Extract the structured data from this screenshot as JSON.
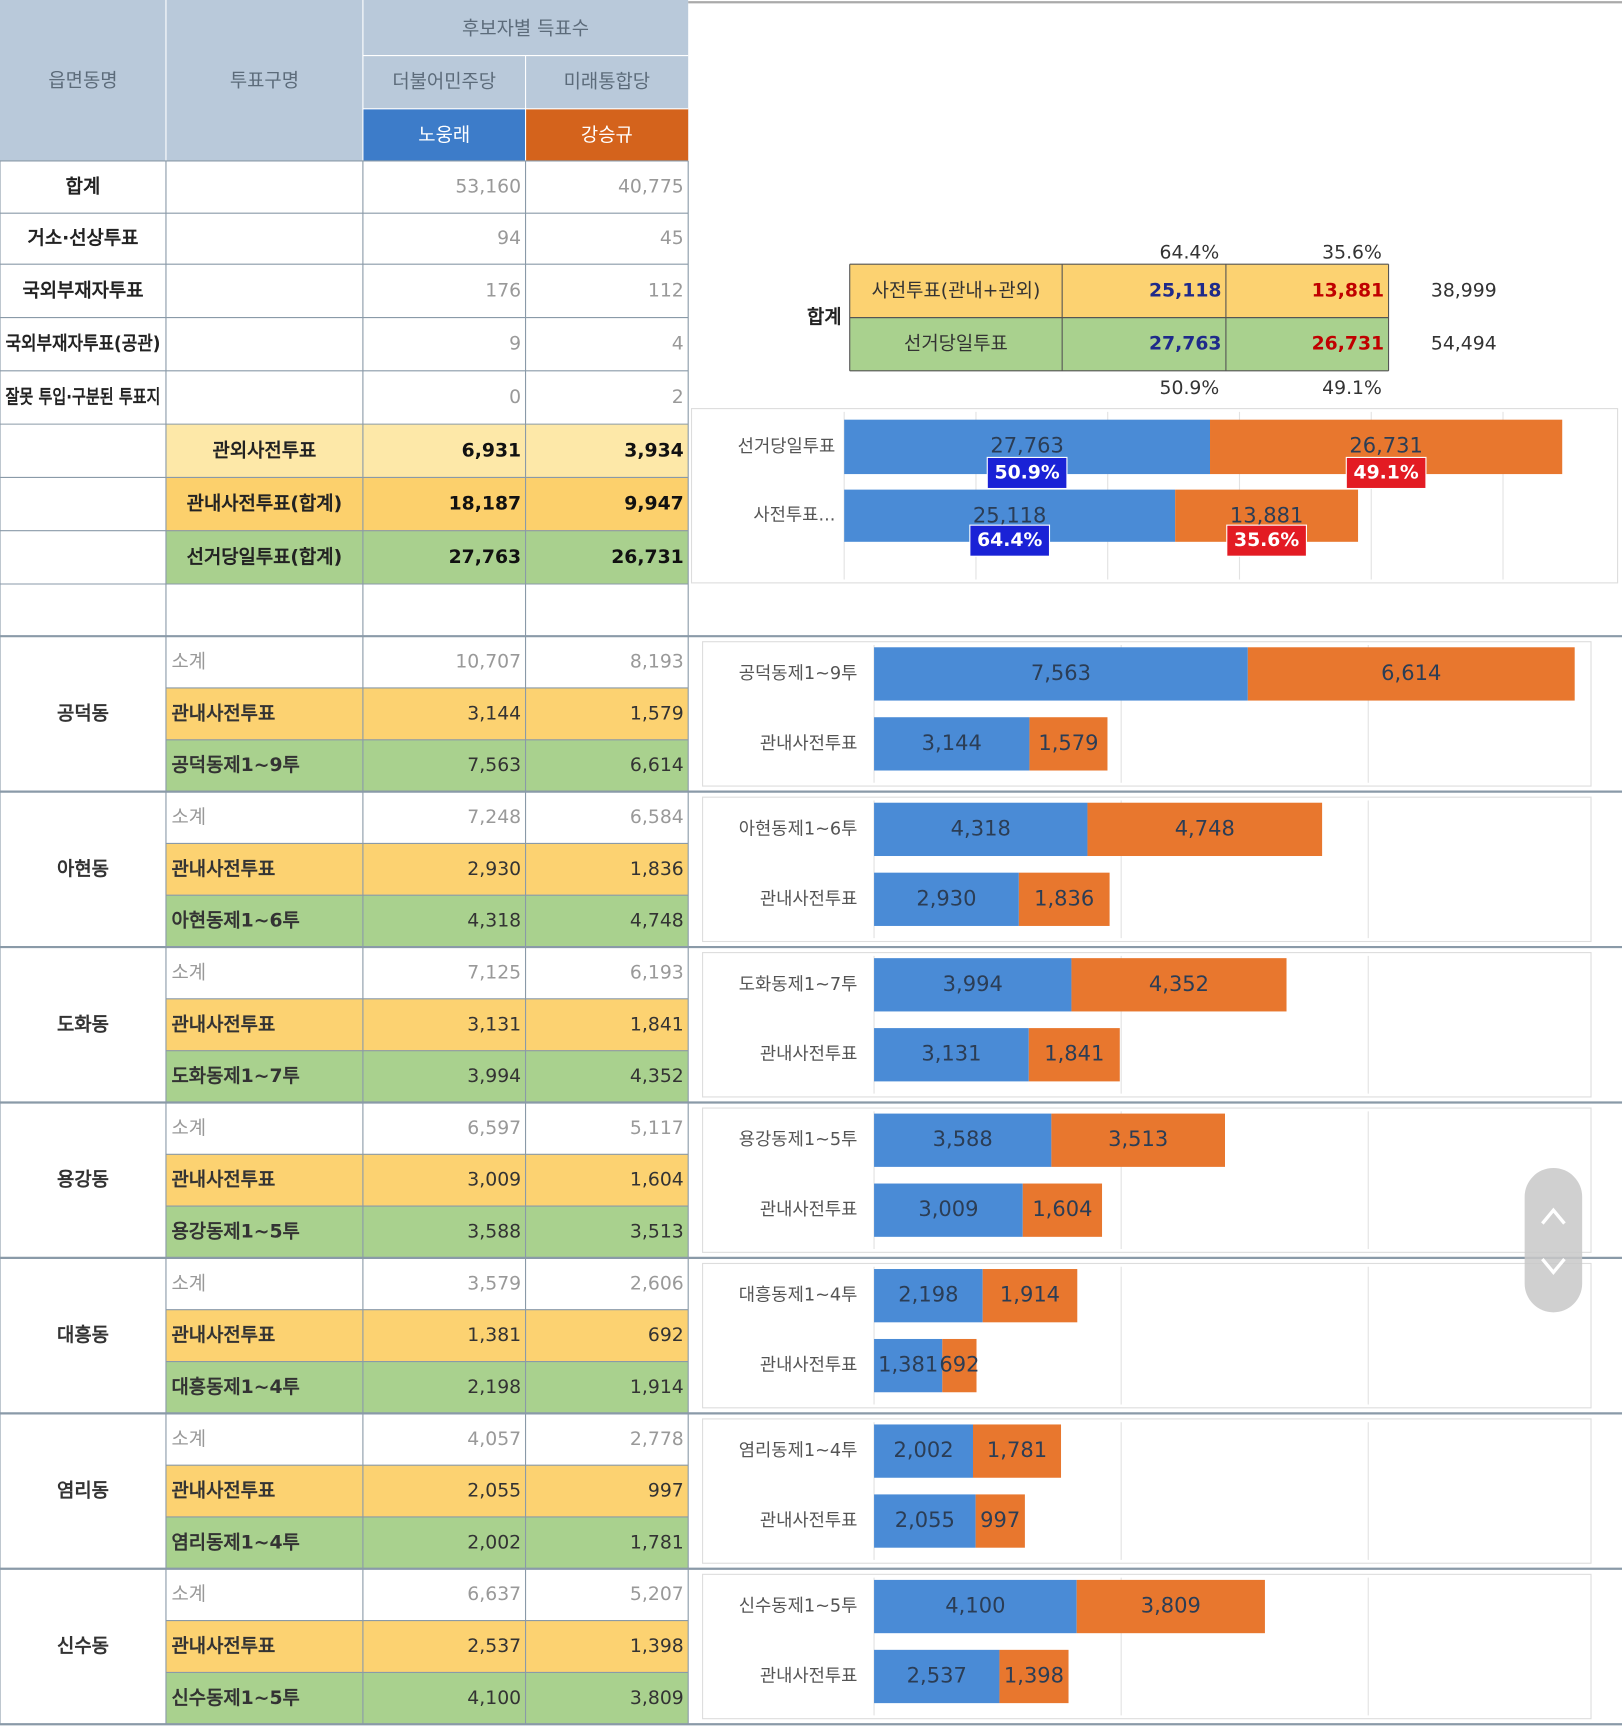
{
  "header": {
    "district": "읍면동명",
    "precinct": "투표구명",
    "group": "후보자별 득표수",
    "parties": [
      "더불어민주당",
      "미래통합당"
    ],
    "candidates": [
      "노웅래",
      "강승규"
    ]
  },
  "top_rows": [
    {
      "district": "합계",
      "votes": [
        "53,160",
        "40,775"
      ]
    },
    {
      "district": "거소·선상투표",
      "votes": [
        "94",
        "45"
      ]
    },
    {
      "district": "국외부재자투표",
      "votes": [
        "176",
        "112"
      ]
    },
    {
      "district": "국외부재자투표(공관)",
      "votes": [
        "9",
        "4"
      ]
    },
    {
      "district": "잘못 투입·구분된 투표지",
      "votes": [
        "0",
        "2"
      ]
    },
    {
      "precinct": "관외사전투표",
      "votes": [
        "6,931",
        "3,934"
      ]
    },
    {
      "precinct": "관내사전투표(합계)",
      "votes": [
        "18,187",
        "9,947"
      ]
    },
    {
      "precinct": "선거당일투표(합계)",
      "votes": [
        "27,763",
        "26,731"
      ]
    }
  ],
  "districts": [
    {
      "name": "공덕동",
      "rows": [
        {
          "precinct": "소계",
          "votes": [
            "10,707",
            "8,193"
          ]
        },
        {
          "precinct": "관내사전투표",
          "votes": [
            "3,144",
            "1,579"
          ]
        },
        {
          "precinct": "공덕동제1~9투",
          "votes": [
            "7,563",
            "6,614"
          ]
        }
      ]
    },
    {
      "name": "아현동",
      "rows": [
        {
          "precinct": "소계",
          "votes": [
            "7,248",
            "6,584"
          ]
        },
        {
          "precinct": "관내사전투표",
          "votes": [
            "2,930",
            "1,836"
          ]
        },
        {
          "precinct": "아현동제1~6투",
          "votes": [
            "4,318",
            "4,748"
          ]
        }
      ]
    },
    {
      "name": "도화동",
      "rows": [
        {
          "precinct": "소계",
          "votes": [
            "7,125",
            "6,193"
          ]
        },
        {
          "precinct": "관내사전투표",
          "votes": [
            "3,131",
            "1,841"
          ]
        },
        {
          "precinct": "도화동제1~7투",
          "votes": [
            "3,994",
            "4,352"
          ]
        }
      ]
    },
    {
      "name": "용강동",
      "rows": [
        {
          "precinct": "소계",
          "votes": [
            "6,597",
            "5,117"
          ]
        },
        {
          "precinct": "관내사전투표",
          "votes": [
            "3,009",
            "1,604"
          ]
        },
        {
          "precinct": "용강동제1~5투",
          "votes": [
            "3,588",
            "3,513"
          ]
        }
      ]
    },
    {
      "name": "대흥동",
      "rows": [
        {
          "precinct": "소계",
          "votes": [
            "3,579",
            "2,606"
          ]
        },
        {
          "precinct": "관내사전투표",
          "votes": [
            "1,381",
            "692"
          ]
        },
        {
          "precinct": "대흥동제1~4투",
          "votes": [
            "2,198",
            "1,914"
          ]
        }
      ]
    },
    {
      "name": "염리동",
      "rows": [
        {
          "precinct": "소계",
          "votes": [
            "4,057",
            "2,778"
          ]
        },
        {
          "precinct": "관내사전투표",
          "votes": [
            "2,055",
            "997"
          ]
        },
        {
          "precinct": "염리동제1~4투",
          "votes": [
            "2,002",
            "1,781"
          ]
        }
      ]
    },
    {
      "name": "신수동",
      "rows": [
        {
          "precinct": "소계",
          "votes": [
            "6,637",
            "5,207"
          ]
        },
        {
          "precinct": "관내사전투표",
          "votes": [
            "2,537",
            "1,398"
          ]
        },
        {
          "precinct": "신수동제1~5투",
          "votes": [
            "4,100",
            "3,809"
          ]
        }
      ]
    }
  ],
  "summary": {
    "label": "합계",
    "top_percents": [
      "64.4%",
      "35.6%"
    ],
    "rows": [
      {
        "label": "사전투표(관내+관외)",
        "votes": [
          "25,118",
          "13,881"
        ],
        "total": "38,999"
      },
      {
        "label": "선거당일투표",
        "votes": [
          "27,763",
          "26,731"
        ],
        "total": "54,494"
      }
    ],
    "bottom_percents": [
      "50.9%",
      "49.1%"
    ]
  },
  "chart_data": [
    {
      "type": "bar",
      "stacked": true,
      "categories": [
        "선거당일투표",
        "사전투표..."
      ],
      "series": [
        {
          "color": "#4a8bd6",
          "values": [
            27763,
            25118
          ],
          "value_labels": [
            "27,763",
            "25,118"
          ],
          "percent_labels": [
            "50.9%",
            "64.4%"
          ],
          "badge_color": "#1a22d6"
        },
        {
          "color": "#e8772e",
          "values": [
            26731,
            13881
          ],
          "value_labels": [
            "26,731",
            "13,881"
          ],
          "percent_labels": [
            "49.1%",
            "35.6%"
          ],
          "badge_color": "#e31b23"
        }
      ],
      "xlim": [
        0,
        55000
      ],
      "xticks": [
        0,
        10000,
        20000,
        30000,
        40000,
        50000
      ],
      "grid": true
    },
    {
      "type": "bar",
      "stacked": true,
      "categories": [
        "공덕동제1~9투",
        "관내사전투표"
      ],
      "series": [
        {
          "color": "#4a8bd6",
          "values": [
            7563,
            3144
          ],
          "value_labels": [
            "7,563",
            "3,144"
          ]
        },
        {
          "color": "#e8772e",
          "values": [
            6614,
            1579
          ],
          "value_labels": [
            "6,614",
            "1,579"
          ]
        }
      ],
      "xlim": [
        0,
        15000
      ],
      "xticks": [
        0,
        5000,
        10000,
        15000
      ],
      "grid": true
    },
    {
      "type": "bar",
      "stacked": true,
      "categories": [
        "아현동제1~6투",
        "관내사전투표"
      ],
      "series": [
        {
          "color": "#4a8bd6",
          "values": [
            4318,
            2930
          ],
          "value_labels": [
            "4,318",
            "2,930"
          ]
        },
        {
          "color": "#e8772e",
          "values": [
            4748,
            1836
          ],
          "value_labels": [
            "4,748",
            "1,836"
          ]
        }
      ],
      "xlim": [
        0,
        15000
      ],
      "xticks": [
        0,
        5000,
        10000,
        15000
      ],
      "grid": true
    },
    {
      "type": "bar",
      "stacked": true,
      "categories": [
        "도화동제1~7투",
        "관내사전투표"
      ],
      "series": [
        {
          "color": "#4a8bd6",
          "values": [
            3994,
            3131
          ],
          "value_labels": [
            "3,994",
            "3,131"
          ]
        },
        {
          "color": "#e8772e",
          "values": [
            4352,
            1841
          ],
          "value_labels": [
            "4,352",
            "1,841"
          ]
        }
      ],
      "xlim": [
        0,
        15000
      ],
      "xticks": [
        0,
        5000,
        10000,
        15000
      ],
      "grid": true
    },
    {
      "type": "bar",
      "stacked": true,
      "categories": [
        "용강동제1~5투",
        "관내사전투표"
      ],
      "series": [
        {
          "color": "#4a8bd6",
          "values": [
            3588,
            3009
          ],
          "value_labels": [
            "3,588",
            "3,009"
          ]
        },
        {
          "color": "#e8772e",
          "values": [
            3513,
            1604
          ],
          "value_labels": [
            "3,513",
            "1,604"
          ]
        }
      ],
      "xlim": [
        0,
        15000
      ],
      "xticks": [
        0,
        5000,
        10000,
        15000
      ],
      "grid": true
    },
    {
      "type": "bar",
      "stacked": true,
      "categories": [
        "대흥동제1~4투",
        "관내사전투표"
      ],
      "series": [
        {
          "color": "#4a8bd6",
          "values": [
            2198,
            1381
          ],
          "value_labels": [
            "2,198",
            "1,381"
          ]
        },
        {
          "color": "#e8772e",
          "values": [
            1914,
            692
          ],
          "value_labels": [
            "1,914",
            "692"
          ]
        }
      ],
      "xlim": [
        0,
        15000
      ],
      "xticks": [
        0,
        5000,
        10000,
        15000
      ],
      "grid": true
    },
    {
      "type": "bar",
      "stacked": true,
      "categories": [
        "염리동제1~4투",
        "관내사전투표"
      ],
      "series": [
        {
          "color": "#4a8bd6",
          "values": [
            2002,
            2055
          ],
          "value_labels": [
            "2,002",
            "2,055"
          ]
        },
        {
          "color": "#e8772e",
          "values": [
            1781,
            997
          ],
          "value_labels": [
            "1,781",
            "997"
          ]
        }
      ],
      "xlim": [
        0,
        15000
      ],
      "xticks": [
        0,
        5000,
        10000,
        15000
      ],
      "grid": true
    },
    {
      "type": "bar",
      "stacked": true,
      "categories": [
        "신수동제1~5투",
        "관내사전투표"
      ],
      "series": [
        {
          "color": "#4a8bd6",
          "values": [
            4100,
            2537
          ],
          "value_labels": [
            "4,100",
            "2,537"
          ]
        },
        {
          "color": "#e8772e",
          "values": [
            3809,
            1398
          ],
          "value_labels": [
            "3,809",
            "1,398"
          ]
        }
      ],
      "xlim": [
        0,
        15000
      ],
      "xticks": [
        0,
        5000,
        10000,
        15000
      ],
      "grid": true
    }
  ]
}
